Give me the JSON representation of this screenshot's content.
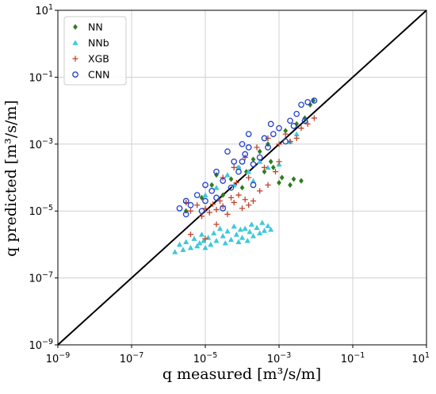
{
  "chart_data": {
    "type": "scatter",
    "title": "",
    "xlabel": "q measured [m³/s/m]",
    "ylabel": "q predicted [m³/s/m]",
    "xscale": "log",
    "yscale": "log",
    "xlim": [
      "1e-9",
      "1e1"
    ],
    "ylim": [
      "1e-9",
      "1e1"
    ],
    "grid": true,
    "legend_position": "top-left",
    "x_ticks": [
      {
        "value": "1e-9",
        "base": "10",
        "exp": "−9"
      },
      {
        "value": "1e-7",
        "base": "10",
        "exp": "−7"
      },
      {
        "value": "1e-5",
        "base": "10",
        "exp": "−5"
      },
      {
        "value": "1e-3",
        "base": "10",
        "exp": "−3"
      },
      {
        "value": "1e-1",
        "base": "10",
        "exp": "−1"
      },
      {
        "value": "1e1",
        "base": "10",
        "exp": "1"
      }
    ],
    "y_ticks": [
      {
        "value": "1e-9",
        "base": "10",
        "exp": "−9"
      },
      {
        "value": "1e-7",
        "base": "10",
        "exp": "−7"
      },
      {
        "value": "1e-5",
        "base": "10",
        "exp": "−5"
      },
      {
        "value": "1e-3",
        "base": "10",
        "exp": "−3"
      },
      {
        "value": "1e-1",
        "base": "10",
        "exp": "−1"
      },
      {
        "value": "1e1",
        "base": "10",
        "exp": "1"
      }
    ],
    "reference_line": {
      "from": [
        "1e-9",
        "1e-9"
      ],
      "to": [
        "1e1",
        "1e1"
      ],
      "color": "#000000"
    },
    "series": [
      {
        "name": "NN",
        "marker": "diamond",
        "color": "#2e7d1f",
        "points": [
          [
            "3.0e-6",
            "1.0e-5"
          ],
          [
            "8.0e-6",
            "2.5e-5"
          ],
          [
            "1.5e-5",
            "6.0e-5"
          ],
          [
            "2.0e-5",
            "1.2e-4"
          ],
          [
            "3.0e-5",
            "3.0e-5"
          ],
          [
            "5.0e-5",
            "9.0e-5"
          ],
          [
            "8.0e-5",
            "2.0e-4"
          ],
          [
            "1.0e-4",
            "5.0e-5"
          ],
          [
            "1.3e-4",
            "1.5e-4"
          ],
          [
            "2.0e-4",
            "3.5e-4"
          ],
          [
            "3.0e-4",
            "6.0e-4"
          ],
          [
            "5.0e-4",
            "1.0e-3"
          ],
          [
            "7.0e-4",
            "2.0e-4"
          ],
          [
            "1.0e-3",
            "7.0e-5"
          ],
          [
            "1.2e-3",
            "1.0e-4"
          ],
          [
            "1.5e-3",
            "2.5e-3"
          ],
          [
            "2.0e-3",
            "6.0e-5"
          ],
          [
            "2.5e-3",
            "9.0e-5"
          ],
          [
            "3.0e-3",
            "4.0e-3"
          ],
          [
            "4.0e-3",
            "8.0e-5"
          ],
          [
            "5.0e-3",
            "6.0e-3"
          ],
          [
            "7.0e-3",
            "1.5e-2"
          ],
          [
            "8.5e-3",
            "2.0e-2"
          ],
          [
            "6.0e-4",
            "3.0e-4"
          ],
          [
            "4.0e-4",
            "1.5e-4"
          ]
        ]
      },
      {
        "name": "NNb",
        "marker": "triangle",
        "color": "#3fc8dc",
        "points": [
          [
            "1.5e-6",
            "6.0e-7"
          ],
          [
            "2.0e-6",
            "1.0e-6"
          ],
          [
            "2.5e-6",
            "7.0e-7"
          ],
          [
            "3.0e-6",
            "1.2e-6"
          ],
          [
            "4.0e-6",
            "8.0e-7"
          ],
          [
            "5.0e-6",
            "1.5e-6"
          ],
          [
            "6.0e-6",
            "9.0e-7"
          ],
          [
            "7.0e-6",
            "1.1e-6"
          ],
          [
            "8.0e-6",
            "2.0e-6"
          ],
          [
            "9.0e-6",
            "1.3e-6"
          ],
          [
            "1.0e-5",
            "8.0e-7"
          ],
          [
            "1.2e-5",
            "1.6e-6"
          ],
          [
            "1.4e-5",
            "1.0e-6"
          ],
          [
            "1.7e-5",
            "2.2e-6"
          ],
          [
            "2.0e-5",
            "1.3e-6"
          ],
          [
            "2.5e-5",
            "3.0e-6"
          ],
          [
            "3.0e-5",
            "1.8e-6"
          ],
          [
            "3.5e-5",
            "1.1e-6"
          ],
          [
            "4.0e-5",
            "2.5e-6"
          ],
          [
            "5.0e-5",
            "1.4e-6"
          ],
          [
            "6.0e-5",
            "3.5e-6"
          ],
          [
            "7.0e-5",
            "2.0e-6"
          ],
          [
            "8.0e-5",
            "1.2e-6"
          ],
          [
            "9.0e-5",
            "2.8e-6"
          ],
          [
            "1.0e-4",
            "1.6e-6"
          ],
          [
            "1.2e-4",
            "3.0e-6"
          ],
          [
            "1.4e-4",
            "1.3e-6"
          ],
          [
            "1.6e-4",
            "2.4e-6"
          ],
          [
            "1.8e-4",
            "4.0e-6"
          ],
          [
            "2.0e-4",
            "1.8e-6"
          ],
          [
            "2.5e-4",
            "3.2e-6"
          ],
          [
            "3.0e-4",
            "2.2e-6"
          ],
          [
            "3.5e-4",
            "4.5e-6"
          ],
          [
            "4.0e-4",
            "2.6e-6"
          ],
          [
            "5.0e-4",
            "3.6e-6"
          ],
          [
            "6.0e-4",
            "2.8e-6"
          ],
          [
            "4.0e-5",
            "1.2e-4"
          ],
          [
            "8.0e-5",
            "2.0e-4"
          ],
          [
            "1.5e-4",
            "1.5e-4"
          ],
          [
            "3.0e-4",
            "3.0e-4"
          ],
          [
            "5.0e-4",
            "2.0e-4"
          ],
          [
            "1.0e-3",
            "2.5e-4"
          ],
          [
            "2.0e-3",
            "1.2e-3"
          ],
          [
            "3.0e-3",
            "2.0e-3"
          ],
          [
            "2.0e-5",
            "5.0e-5"
          ],
          [
            "1.0e-5",
            "3.0e-5"
          ],
          [
            "6.0e-5",
            "6.0e-5"
          ],
          [
            "2.0e-4",
            "8.0e-5"
          ]
        ]
      },
      {
        "name": "XGB",
        "marker": "plus",
        "color": "#c0442c",
        "points": [
          [
            "3.0e-6",
            "1.8e-5"
          ],
          [
            "4.0e-6",
            "1.0e-5"
          ],
          [
            "6.0e-6",
            "1.5e-5"
          ],
          [
            "8.0e-6",
            "7.0e-6"
          ],
          [
            "1.0e-5",
            "1.2e-5"
          ],
          [
            "1.3e-5",
            "9.0e-6"
          ],
          [
            "1.6e-5",
            "1.6e-5"
          ],
          [
            "2.0e-5",
            "1.1e-5"
          ],
          [
            "2.5e-5",
            "2.0e-5"
          ],
          [
            "3.0e-5",
            "1.4e-5"
          ],
          [
            "4.0e-5",
            "8.0e-6"
          ],
          [
            "5.0e-5",
            "2.5e-5"
          ],
          [
            "6.0e-5",
            "1.8e-5"
          ],
          [
            "8.0e-5",
            "3.0e-5"
          ],
          [
            "1.0e-4",
            "1.2e-5"
          ],
          [
            "1.2e-4",
            "2.2e-5"
          ],
          [
            "1.5e-4",
            "1.5e-5"
          ],
          [
            "2.0e-4",
            "2.0e-5"
          ],
          [
            "3.0e-4",
            "4.0e-5"
          ],
          [
            "5.0e-4",
            "6.0e-5"
          ],
          [
            "4.0e-6",
            "2.0e-6"
          ],
          [
            "1.0e-5",
            "1.5e-6"
          ],
          [
            "2.0e-5",
            "4.0e-6"
          ],
          [
            "3.0e-5",
            "1.0e-4"
          ],
          [
            "6.0e-5",
            "2.0e-4"
          ],
          [
            "1.2e-4",
            "4.0e-4"
          ],
          [
            "2.5e-4",
            "8.0e-4"
          ],
          [
            "5.0e-4",
            "1.5e-3"
          ],
          [
            "1.0e-3",
            "1.0e-3"
          ],
          [
            "1.5e-3",
            "2.0e-3"
          ],
          [
            "2.0e-3",
            "1.2e-3"
          ],
          [
            "3.0e-3",
            "1.5e-3"
          ],
          [
            "4.0e-3",
            "3.0e-3"
          ],
          [
            "6.0e-3",
            "4.0e-3"
          ],
          [
            "9.0e-3",
            "6.0e-3"
          ],
          [
            "1.0e-3",
            "3.0e-4"
          ],
          [
            "8.0e-4",
            "1.5e-4"
          ],
          [
            "1.5e-4",
            "1.0e-4"
          ],
          [
            "7.0e-5",
            "7.0e-5"
          ],
          [
            "4.0e-4",
            "2.0e-4"
          ]
        ]
      },
      {
        "name": "CNN",
        "marker": "circle",
        "color": "#1f3fcc",
        "points": [
          [
            "2.0e-6",
            "1.2e-5"
          ],
          [
            "3.0e-6",
            "2.0e-5"
          ],
          [
            "4.0e-6",
            "1.5e-5"
          ],
          [
            "6.0e-6",
            "3.0e-5"
          ],
          [
            "1.0e-5",
            "2.0e-5"
          ],
          [
            "1.5e-5",
            "4.0e-5"
          ],
          [
            "2.0e-5",
            "1.5e-4"
          ],
          [
            "3.0e-5",
            "8.0e-5"
          ],
          [
            "4.0e-5",
            "6.0e-4"
          ],
          [
            "6.0e-5",
            "3.0e-4"
          ],
          [
            "8.0e-5",
            "1.5e-4"
          ],
          [
            "1.0e-4",
            "1.0e-3"
          ],
          [
            "1.2e-4",
            "5.0e-4"
          ],
          [
            "1.5e-4",
            "2.0e-3"
          ],
          [
            "2.0e-4",
            "2.5e-4"
          ],
          [
            "3.0e-4",
            "4.0e-4"
          ],
          [
            "4.0e-4",
            "1.5e-3"
          ],
          [
            "5.0e-4",
            "8.0e-4"
          ],
          [
            "7.0e-4",
            "2.0e-3"
          ],
          [
            "1.0e-3",
            "3.0e-3"
          ],
          [
            "1.5e-3",
            "1.2e-3"
          ],
          [
            "2.0e-3",
            "5.0e-3"
          ],
          [
            "3.0e-3",
            "8.0e-3"
          ],
          [
            "4.0e-3",
            "1.5e-2"
          ],
          [
            "6.0e-3",
            "1.8e-2"
          ],
          [
            "9.0e-3",
            "2.0e-2"
          ],
          [
            "1.0e-5",
            "6.0e-5"
          ],
          [
            "2.0e-5",
            "2.5e-5"
          ],
          [
            "5.0e-5",
            "5.0e-5"
          ],
          [
            "1.0e-4",
            "3.0e-4"
          ],
          [
            "2.0e-4",
            "6.0e-5"
          ],
          [
            "3.0e-5",
            "1.2e-5"
          ],
          [
            "8.0e-6",
            "1.0e-5"
          ],
          [
            "3.0e-6",
            "8.0e-6"
          ],
          [
            "1.5e-4",
            "8.0e-4"
          ],
          [
            "6.0e-4",
            "4.0e-3"
          ],
          [
            "2.5e-3",
            "3.5e-3"
          ],
          [
            "5.0e-3",
            "5.0e-3"
          ]
        ]
      }
    ]
  }
}
